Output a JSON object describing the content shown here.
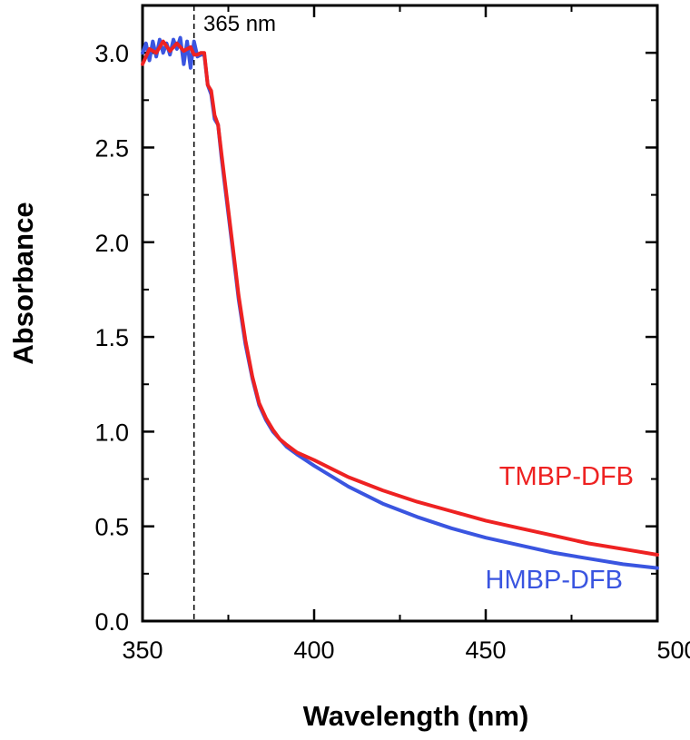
{
  "chart_data": {
    "type": "line",
    "title": "",
    "xlabel": "Wavelength (nm)",
    "ylabel": "Absorbance",
    "xlim": [
      350,
      500
    ],
    "ylim": [
      0.0,
      3.25
    ],
    "x_ticks": [
      350,
      400,
      450,
      500
    ],
    "x_tick_labels": [
      "350",
      "400",
      "450",
      "500"
    ],
    "y_ticks": [
      0.0,
      0.5,
      1.0,
      1.5,
      2.0,
      2.5,
      3.0
    ],
    "y_tick_labels": [
      "0.0",
      "0.5",
      "1.0",
      "1.5",
      "2.0",
      "2.5",
      "3.0"
    ],
    "grid": false,
    "annotations": [
      {
        "type": "vline",
        "x": 365,
        "style": "dashed",
        "label": "365 nm"
      }
    ],
    "series": [
      {
        "name": "HMBP-DFB",
        "color": "#3a55e0",
        "x": [
          350,
          351,
          352,
          353,
          354,
          355,
          356,
          357,
          358,
          359,
          360,
          361,
          362,
          363,
          364,
          365,
          366,
          367,
          368,
          369,
          370,
          371,
          372,
          373,
          374,
          375,
          376,
          377,
          378,
          379,
          380,
          382,
          384,
          386,
          388,
          390,
          392,
          395,
          400,
          410,
          420,
          430,
          440,
          450,
          460,
          470,
          480,
          490,
          500
        ],
        "y": [
          3.0,
          3.05,
          2.96,
          3.06,
          2.98,
          3.07,
          3.0,
          3.05,
          2.99,
          3.07,
          3.02,
          3.08,
          2.94,
          3.06,
          2.92,
          3.06,
          2.98,
          2.99,
          2.99,
          2.83,
          2.78,
          2.65,
          2.62,
          2.45,
          2.3,
          2.15,
          2.0,
          1.85,
          1.7,
          1.58,
          1.46,
          1.28,
          1.14,
          1.06,
          1.0,
          0.96,
          0.92,
          0.88,
          0.82,
          0.71,
          0.62,
          0.55,
          0.49,
          0.44,
          0.4,
          0.36,
          0.33,
          0.3,
          0.28
        ]
      },
      {
        "name": "TMBP-DFB",
        "color": "#ee2222",
        "x": [
          350,
          352,
          354,
          356,
          358,
          360,
          362,
          364,
          365,
          366,
          367,
          368,
          369,
          370,
          371,
          372,
          373,
          374,
          375,
          376,
          377,
          378,
          379,
          380,
          382,
          384,
          386,
          388,
          390,
          392,
          395,
          400,
          410,
          420,
          430,
          440,
          450,
          460,
          470,
          480,
          490,
          500
        ],
        "y": [
          2.94,
          3.02,
          3.0,
          3.06,
          3.01,
          3.05,
          3.01,
          3.03,
          2.99,
          2.99,
          3.0,
          3.0,
          2.83,
          2.8,
          2.67,
          2.62,
          2.47,
          2.32,
          2.17,
          2.02,
          1.87,
          1.72,
          1.6,
          1.48,
          1.29,
          1.15,
          1.07,
          1.01,
          0.96,
          0.93,
          0.89,
          0.85,
          0.76,
          0.69,
          0.63,
          0.58,
          0.53,
          0.49,
          0.45,
          0.41,
          0.38,
          0.35
        ]
      }
    ],
    "legend_labels": [
      {
        "text": "TMBP-DFB",
        "color": "#ee2222"
      },
      {
        "text": "HMBP-DFB",
        "color": "#3a55e0"
      }
    ]
  }
}
